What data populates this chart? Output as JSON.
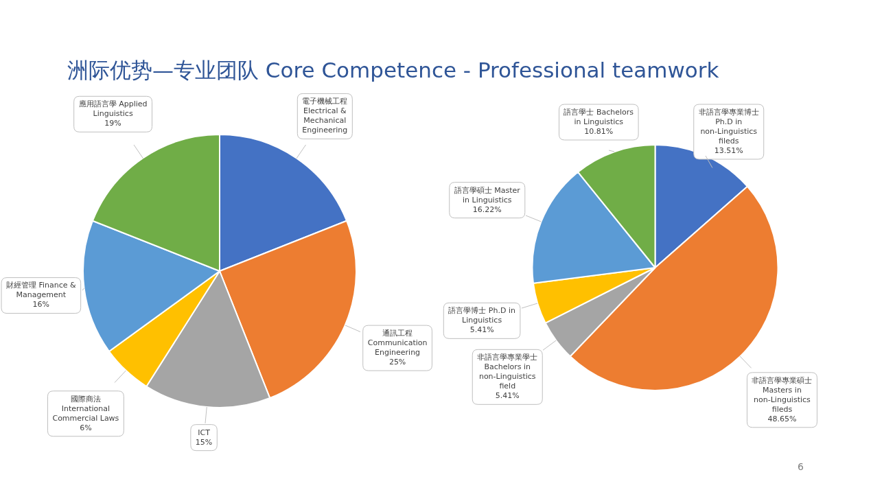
{
  "chart_data": [
    {
      "type": "pie",
      "title": "洲际优势—专业团队 Core Competence - Professional teamwork",
      "categories": [
        "電子機械工程 Electrical & Mechanical Engineering",
        "通訊工程 Communication Engineering",
        "ICT",
        "國際商法 International Commercial Laws",
        "財經管理 Finance & Management",
        "應用語言學 Applied Linguistics"
      ],
      "values": [
        19,
        25,
        15,
        6,
        16,
        19
      ],
      "value_labels": [
        null,
        "25%",
        "15%",
        "6%",
        "16%",
        "19%"
      ],
      "colors": [
        "#4472c4",
        "#ed7d31",
        "#a5a5a5",
        "#ffc000",
        "#5b9bd5",
        "#70ad47"
      ],
      "legend": false
    },
    {
      "type": "pie",
      "categories": [
        "非語言學專業博士 Ph.D in non-Linguistics fileds",
        "非語言學專業碩士 Masters in non-Linguistics fileds",
        "非語言學專業學士 Bachelors in non-Linguistics field",
        "語言學博士 Ph.D in Linguistics",
        "語言學碩士 Master in Linguistics",
        "語言學士 Bachelors in Linguistics"
      ],
      "values": [
        13.51,
        48.65,
        5.41,
        5.41,
        16.22,
        10.81
      ],
      "value_labels": [
        "13.51%",
        "48.65%",
        "5.41%",
        "5.41%",
        "16.22%",
        "10.81%"
      ],
      "colors": [
        "#4472c4",
        "#ed7d31",
        "#a5a5a5",
        "#ffc000",
        "#5b9bd5",
        "#70ad47"
      ],
      "legend": false,
      "annotations": [
        "6"
      ]
    }
  ]
}
